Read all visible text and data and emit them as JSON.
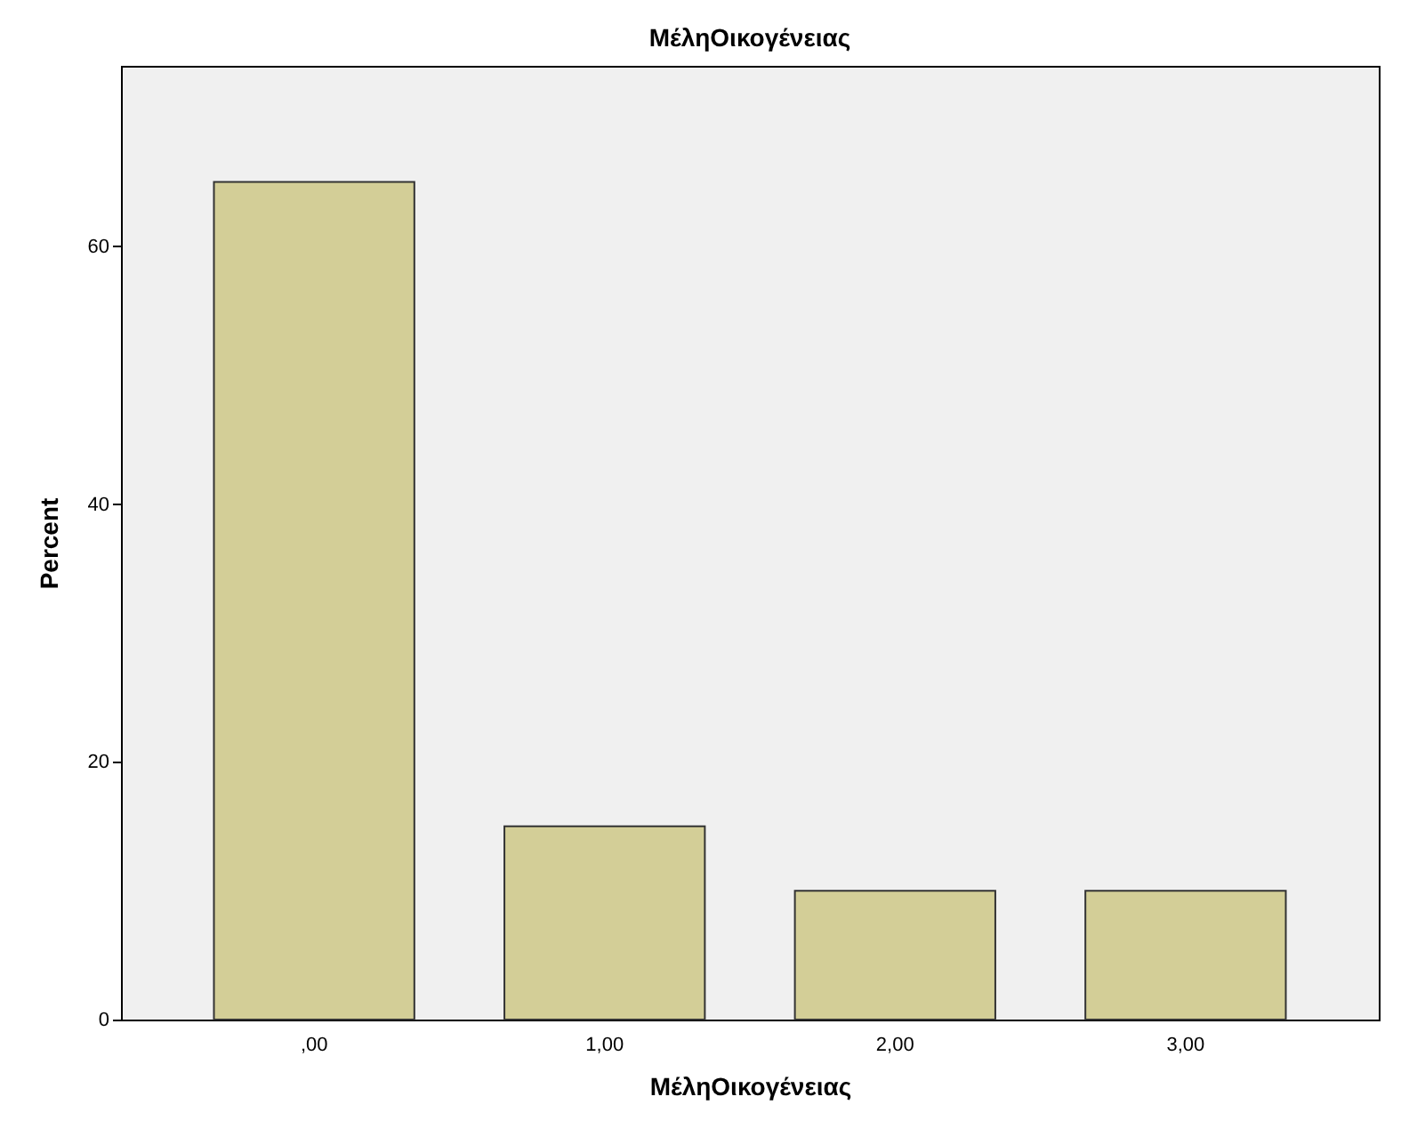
{
  "chart_data": {
    "type": "bar",
    "title": "ΜέληΟικογένειας",
    "xlabel": "ΜέληΟικογένειας",
    "ylabel": "Percent",
    "categories": [
      ",00",
      "1,00",
      "2,00",
      "3,00"
    ],
    "values": [
      65,
      15,
      10,
      10
    ],
    "color": "#d3ce97",
    "ylim": [
      0,
      74
    ],
    "yticks": [
      0,
      20,
      40,
      60
    ],
    "grid": false
  }
}
